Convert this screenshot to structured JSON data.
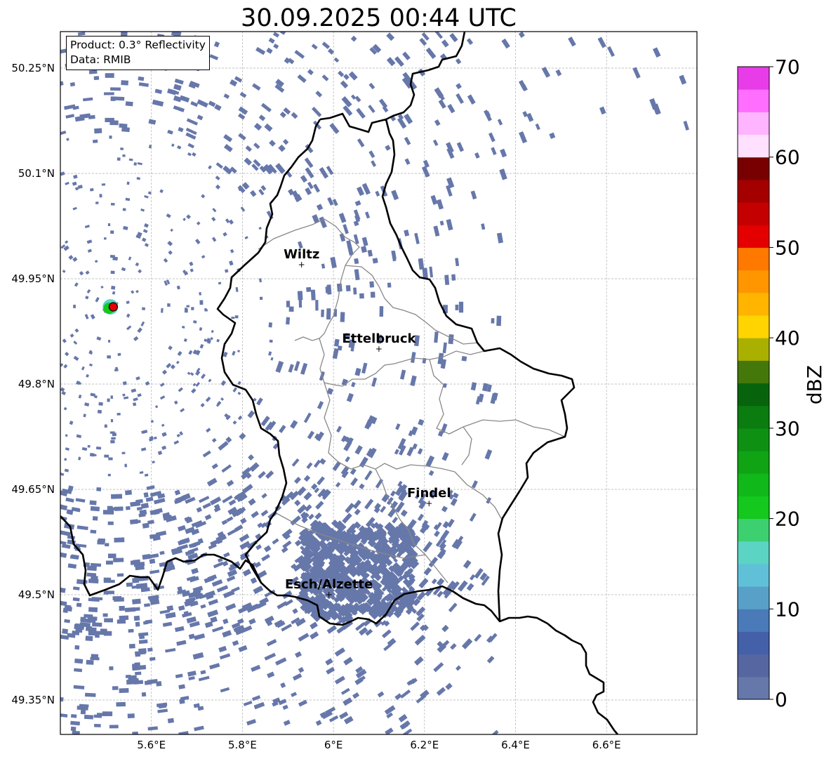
{
  "title": "30.09.2025 00:44 UTC",
  "info": {
    "product": "Product: 0.3° Reflectivity",
    "data": "Data: RMIB"
  },
  "axes": {
    "lon_ticks": [
      "5.6°E",
      "5.8°E",
      "6°E",
      "6.2°E",
      "6.4°E",
      "6.6°E"
    ],
    "lat_ticks": [
      "50.25°N",
      "50.1°N",
      "49.95°N",
      "49.8°N",
      "49.65°N",
      "49.5°N",
      "49.35°N"
    ]
  },
  "cities": [
    {
      "name": "Wiltz",
      "lon": 5.93,
      "lat": 49.97
    },
    {
      "name": "Ettelbruck",
      "lon": 6.1,
      "lat": 49.85
    },
    {
      "name": "Findel",
      "lon": 6.21,
      "lat": 49.63
    },
    {
      "name": "Esch/Alzette",
      "lon": 5.99,
      "lat": 49.5
    }
  ],
  "radar_site": {
    "lon": 5.51,
    "lat": 49.91
  },
  "colorbar": {
    "label": "dBZ",
    "ticks": [
      "0",
      "10",
      "20",
      "30",
      "40",
      "50",
      "60",
      "70"
    ],
    "min": 0,
    "max": 70,
    "step": 2.5,
    "colors": [
      "#6677aa",
      "#5566a0",
      "#4460a8",
      "#4a7ab8",
      "#58a0c8",
      "#60c0d8",
      "#5cd4c4",
      "#3cd070",
      "#14c81e",
      "#10b81a",
      "#10a414",
      "#0e9012",
      "#0a7c10",
      "#08640c",
      "#44780a",
      "#aab000",
      "#ffd400",
      "#ffb400",
      "#ff9600",
      "#ff7800",
      "#e40000",
      "#c40000",
      "#a40000",
      "#780000",
      "#ffe0ff",
      "#ffb4ff",
      "#ff6eff",
      "#e83ce8"
    ]
  },
  "colors": {
    "echo": "#6677aa",
    "border": "#000000",
    "canton": "#888888",
    "site_outer": "#5cd4c4",
    "site_mid": "#14c81e",
    "site_center": "#e40000"
  }
}
